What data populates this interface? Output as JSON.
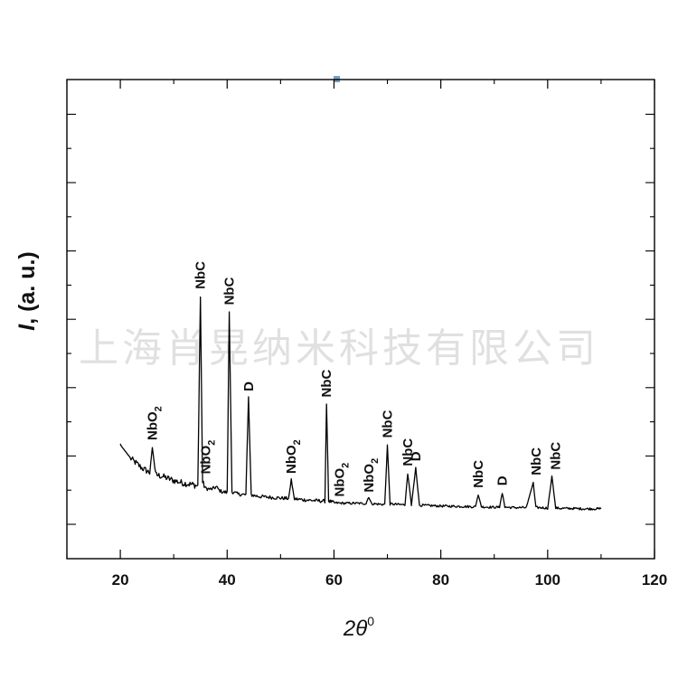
{
  "watermark": "上海肖晃纳米科技有限公司",
  "chart_data": {
    "type": "line",
    "title": "",
    "xlabel_main": "2θ",
    "xlabel_sup": "0",
    "ylabel_main": "I",
    "ylabel_rest": ", (a. u.)",
    "xlim": [
      10,
      120
    ],
    "ylim": [
      0,
      100
    ],
    "xticks": [
      20,
      40,
      60,
      80,
      100,
      120
    ],
    "grid": false,
    "series": [
      {
        "color": "#000000",
        "x": [
          20.0,
          22.0,
          24.0,
          25.5,
          26.0,
          26.6,
          28.0,
          30.0,
          32.0,
          33.5,
          34.5,
          35.0,
          35.4,
          36.0,
          37.0,
          38.0,
          38.5,
          39.0,
          40.0,
          40.4,
          40.9,
          42.0,
          43.5,
          44.0,
          44.5,
          46.0,
          48.0,
          50.0,
          51.5,
          52.0,
          52.6,
          54.0,
          56.0,
          57.5,
          58.3,
          58.6,
          59.0,
          60.0,
          62.0,
          64.0,
          66.0,
          66.5,
          67.0,
          68.0,
          69.5,
          70.0,
          70.5,
          72.0,
          73.3,
          73.8,
          74.5,
          75.3,
          76.0,
          78.0,
          80.0,
          84.0,
          86.5,
          87.0,
          87.6,
          90.0,
          91.0,
          91.5,
          92.0,
          94.0,
          96.0,
          97.3,
          97.8,
          98.5,
          100.0,
          100.8,
          101.5,
          102.5,
          104.0,
          107.0,
          110.0
        ],
        "y": [
          20.0,
          16.5,
          14.2,
          13.0,
          19.5,
          12.5,
          12.0,
          11.0,
          10.3,
          10.0,
          9.6,
          57.5,
          10.5,
          9.0,
          8.8,
          9.4,
          8.6,
          8.2,
          8.0,
          53.5,
          8.2,
          7.6,
          7.4,
          31.7,
          7.4,
          7.0,
          6.8,
          6.6,
          6.5,
          11.0,
          6.4,
          6.2,
          6.0,
          5.9,
          5.8,
          30.3,
          5.9,
          5.4,
          5.3,
          5.3,
          5.2,
          7.0,
          5.2,
          5.1,
          5.0,
          20.0,
          5.1,
          5.0,
          4.9,
          12.9,
          4.9,
          14.1,
          4.8,
          4.7,
          4.6,
          4.5,
          4.4,
          7.5,
          4.4,
          4.3,
          4.3,
          8.0,
          4.3,
          4.2,
          4.2,
          10.5,
          4.2,
          4.2,
          4.1,
          12.0,
          4.1,
          4.0,
          4.0,
          3.9,
          3.9
        ]
      }
    ],
    "annotations": [
      {
        "text": "NbC",
        "x": 35.0,
        "y": 58.0,
        "sub": ""
      },
      {
        "text": "NbC",
        "x": 40.4,
        "y": 54.0,
        "sub": ""
      },
      {
        "text": "D",
        "x": 44.0,
        "y": 32.3,
        "sub": ""
      },
      {
        "text": "NbC",
        "x": 58.6,
        "y": 30.8,
        "sub": ""
      },
      {
        "text": "NbC",
        "x": 70.0,
        "y": 20.6,
        "sub": ""
      },
      {
        "text": "NbC",
        "x": 73.8,
        "y": 13.5,
        "sub": ""
      },
      {
        "text": "D",
        "x": 75.3,
        "y": 14.7,
        "sub": ""
      },
      {
        "text": "NbC",
        "x": 87.0,
        "y": 8.0,
        "sub": ""
      },
      {
        "text": "D",
        "x": 91.5,
        "y": 8.6,
        "sub": ""
      },
      {
        "text": "NbC",
        "x": 97.8,
        "y": 11.2,
        "sub": ""
      },
      {
        "text": "NbC",
        "x": 101.5,
        "y": 12.6,
        "sub": ""
      },
      {
        "text": "NbO",
        "x": 26.0,
        "y": 20.0,
        "sub": "2"
      },
      {
        "text": "NbO",
        "x": 36.0,
        "y": 11.5,
        "sub": "2"
      },
      {
        "text": "NbO",
        "x": 52.0,
        "y": 11.6,
        "sub": "2"
      },
      {
        "text": "NbO",
        "x": 61.0,
        "y": 5.8,
        "sub": "2"
      },
      {
        "text": "NbO",
        "x": 66.5,
        "y": 6.9,
        "sub": "2"
      }
    ]
  }
}
